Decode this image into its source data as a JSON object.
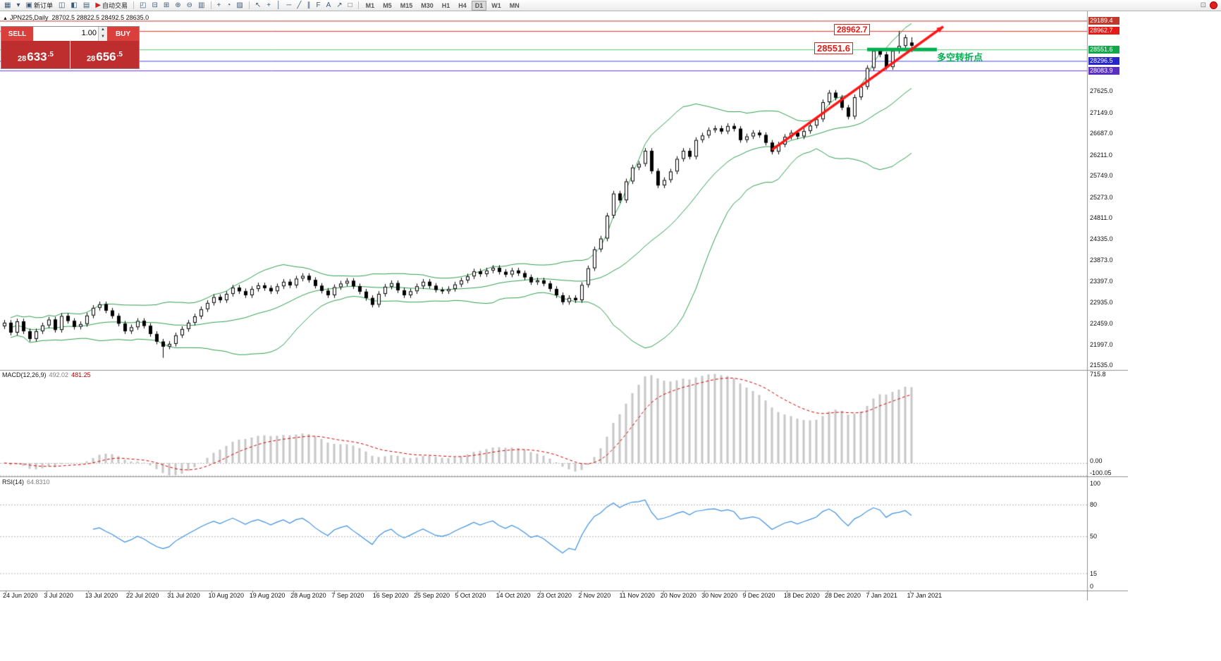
{
  "toolbar": {
    "items": [
      {
        "name": "new-chart-button",
        "glyph": "▦"
      },
      {
        "name": "chart-list-caret-icon",
        "glyph": "▾"
      },
      {
        "name": "new-order-button",
        "glyph": "▣",
        "label": "新订单"
      },
      {
        "name": "market-watch-button",
        "glyph": "◫"
      },
      {
        "name": "navigator-button",
        "glyph": "◧"
      },
      {
        "name": "terminal-button",
        "glyph": "▤"
      },
      {
        "name": "autotrading-button",
        "glyph": "▶",
        "label": "自动交易",
        "accent": "#cc2222"
      },
      {
        "sep": true
      },
      {
        "name": "cascade-windows-button",
        "glyph": "◰"
      },
      {
        "name": "tile-horizontally-button",
        "glyph": "⊟"
      },
      {
        "name": "tile-vertically-button",
        "glyph": "⊞"
      },
      {
        "name": "zoom-in-button",
        "glyph": "⊕"
      },
      {
        "name": "zoom-out-button",
        "glyph": "⊖"
      },
      {
        "name": "auto-arrange-button",
        "glyph": "▥"
      },
      {
        "sep": true
      },
      {
        "name": "indicators-add-button",
        "glyph": "+"
      },
      {
        "name": "period-clock-button",
        "glyph": "◔"
      },
      {
        "name": "templates-button",
        "glyph": "▨"
      },
      {
        "sep": true
      },
      {
        "name": "cursor-tool-button",
        "glyph": "↖"
      },
      {
        "name": "crosshair-tool-button",
        "glyph": "+"
      },
      {
        "name": "vertical-line-tool-button",
        "glyph": "│"
      },
      {
        "name": "horizontal-line-tool-button",
        "glyph": "─"
      },
      {
        "name": "trendline-tool-button",
        "glyph": "╱"
      },
      {
        "name": "channel-tool-button",
        "glyph": "∥"
      },
      {
        "name": "fibonacci-tool-button",
        "glyph": "F"
      },
      {
        "name": "text-tool-button",
        "glyph": "A"
      },
      {
        "name": "arrow-object-button",
        "glyph": "↗"
      },
      {
        "name": "shapes-tool-button",
        "glyph": "□"
      },
      {
        "sep": true
      }
    ],
    "timeframes": [
      "M1",
      "M5",
      "M15",
      "M30",
      "H1",
      "H4",
      "D1",
      "W1",
      "MN"
    ],
    "active_timeframe": "D1"
  },
  "symbol_header": {
    "marker": "▲",
    "symbol": "JPN225,Daily",
    "ohlc": "28702.5 28822.5 28492.5 28635.0"
  },
  "one_click": {
    "sell_label": "SELL",
    "buy_label": "BUY",
    "volume": "1.00",
    "sell": {
      "pre": "28",
      "big": "633",
      "frac": ".5"
    },
    "buy": {
      "pre": "28",
      "big": "656",
      "frac": ".5"
    }
  },
  "annotations": {
    "resistance_label": "28962.7",
    "support_label": "28551.6",
    "turning_point": "多空转折点",
    "arrow": {
      "i1": 121,
      "p1": 26320,
      "i2": 148,
      "p2": 29060
    },
    "segment": {
      "i1": 136,
      "i2": 147,
      "p": 28551.6
    }
  },
  "price_lines": [
    {
      "t": "29189.4",
      "v": 29189.4,
      "line": "#b03a2e",
      "bg": "#c0392b"
    },
    {
      "t": "28962.7",
      "v": 28962.7,
      "line": "#ff2a2a",
      "bg": "#e41b17"
    },
    {
      "t": "28551.6",
      "v": 28551.6,
      "line": "#58c777",
      "bg": "#11a84b"
    },
    {
      "t": "28296.5",
      "v": 28296.5,
      "line": "#4848e0",
      "bg": "#2727c8"
    },
    {
      "t": "28083.9",
      "v": 28083.9,
      "line": "#6a3bd8",
      "bg": "#5b2fc4"
    }
  ],
  "price_axis_ticks": [
    {
      "t": "27625.0",
      "v": 27625
    },
    {
      "t": "27149.0",
      "v": 27149
    },
    {
      "t": "26687.0",
      "v": 26687
    },
    {
      "t": "26211.0",
      "v": 26211
    },
    {
      "t": "25749.0",
      "v": 25749
    },
    {
      "t": "25273.0",
      "v": 25273
    },
    {
      "t": "24811.0",
      "v": 24811
    },
    {
      "t": "24335.0",
      "v": 24335
    },
    {
      "t": "23873.0",
      "v": 23873
    },
    {
      "t": "23397.0",
      "v": 23397
    },
    {
      "t": "22935.0",
      "v": 22935
    },
    {
      "t": "22459.0",
      "v": 22459
    },
    {
      "t": "21997.0",
      "v": 21997
    },
    {
      "t": "21535.0",
      "v": 21535
    }
  ],
  "colors": {
    "band": "#2f9e4f",
    "candle_up": "#ffffff",
    "candle_down": "#000000",
    "candle_border": "#000000",
    "histogram": "#c6c6c6",
    "signal": "#d40000",
    "rsi_line": "#3d8fe0",
    "arrow": "#ff1616",
    "segment": "#00b050",
    "grid_dot": "#b9b9b9",
    "separator": "#909090"
  },
  "chart_data": {
    "type": "candlestick",
    "title": "JPN225,Daily",
    "symbol": "JPN225",
    "period": "Daily",
    "current_ohlc": {
      "open": 28702.5,
      "high": 28822.5,
      "low": 28492.5,
      "close": 28635.0
    },
    "first_open": 22400,
    "wick_pad": 60,
    "closes": [
      22480,
      22260,
      22510,
      22290,
      22120,
      22290,
      22420,
      22550,
      22320,
      22630,
      22520,
      22390,
      22450,
      22640,
      22810,
      22890,
      22750,
      22630,
      22460,
      22290,
      22380,
      22520,
      22410,
      22230,
      22060,
      21950,
      22010,
      22200,
      22340,
      22480,
      22620,
      22780,
      22920,
      23050,
      22980,
      23120,
      23260,
      23180,
      23090,
      23230,
      23310,
      23250,
      23180,
      23290,
      23390,
      23310,
      23460,
      23520,
      23430,
      23300,
      23190,
      23090,
      23270,
      23350,
      23410,
      23290,
      23170,
      23030,
      22880,
      23120,
      23280,
      23360,
      23200,
      23090,
      23180,
      23290,
      23390,
      23300,
      23210,
      23180,
      23230,
      23330,
      23420,
      23510,
      23620,
      23560,
      23640,
      23700,
      23610,
      23550,
      23640,
      23580,
      23490,
      23380,
      23420,
      23350,
      23230,
      23090,
      22940,
      23030,
      22980,
      23320,
      23690,
      24110,
      24350,
      24860,
      25350,
      25200,
      25620,
      25930,
      26010,
      26300,
      25850,
      25530,
      25650,
      25840,
      26120,
      26300,
      26170,
      26540,
      26640,
      26760,
      26800,
      26730,
      26850,
      26790,
      26540,
      26620,
      26700,
      26650,
      26480,
      26280,
      26440,
      26610,
      26700,
      26620,
      26740,
      26860,
      27000,
      27380,
      27590,
      27480,
      27260,
      27060,
      27490,
      27720,
      28140,
      28520,
      28440,
      28160,
      28520,
      28630,
      28820,
      28635
    ],
    "overrides": [
      {
        "i": 25,
        "l": 21700
      },
      {
        "i": 141,
        "h": 28962.7
      },
      {
        "i": 143,
        "o": 28702.5,
        "h": 28822.5,
        "l": 28492.5,
        "c": 28635.0
      }
    ],
    "x_labels": [
      "24 Jun 2020",
      "3 Jul 2020",
      "13 Jul 2020",
      "22 Jul 2020",
      "31 Jul 2020",
      "10 Aug 2020",
      "19 Aug 2020",
      "28 Aug 2020",
      "7 Sep 2020",
      "16 Sep 2020",
      "25 Sep 2020",
      "5 Oct 2020",
      "14 Oct 2020",
      "23 Oct 2020",
      "2 Nov 2020",
      "11 Nov 2020",
      "20 Nov 2020",
      "30 Nov 2020",
      "9 Dec 2020",
      "18 Dec 2020",
      "28 Dec 2020",
      "7 Jan 2021",
      "17 Jan 2021"
    ],
    "indicators": {
      "bollinger": {
        "period": 20,
        "deviation": 2
      },
      "macd": {
        "name": "MACD(12,26,9)",
        "main": "492.02",
        "signal": "481.25",
        "scale": [
          {
            "t": "715.8",
            "v": 715.8
          },
          {
            "t": "0.00",
            "v": 0
          },
          {
            "t": "-100.05",
            "v": -100.05
          }
        ]
      },
      "rsi": {
        "name": "RSI(14)",
        "value": "64.8310",
        "scale": [
          {
            "t": "100",
            "v": 100
          },
          {
            "t": "80",
            "v": 80
          },
          {
            "t": "50",
            "v": 50
          },
          {
            "t": "15",
            "v": 15
          },
          {
            "t": "0",
            "v": 0
          }
        ],
        "levels": [
          80,
          50,
          15
        ]
      }
    }
  }
}
